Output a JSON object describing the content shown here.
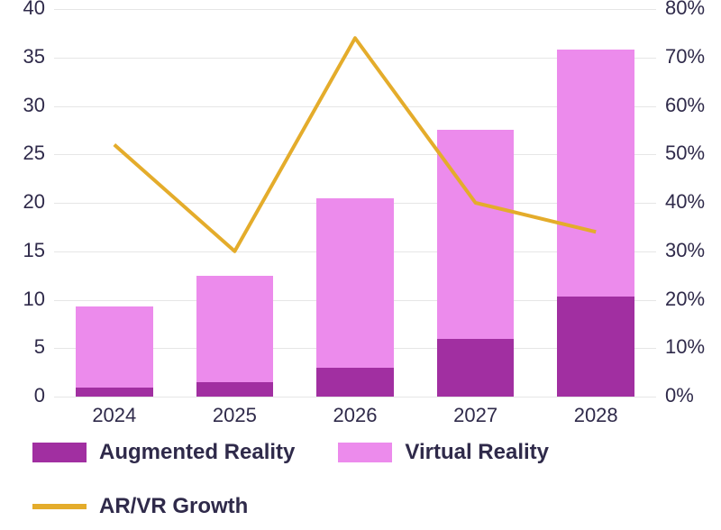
{
  "chart": {
    "type": "stacked-bar+line",
    "background_color": "#ffffff",
    "grid_color": "#e6e6e6",
    "axis_text_color": "#2f2a4a",
    "axis_font_size": 22,
    "legend_font_size": 24,
    "legend_font_weight": 600,
    "bar_width_ratio": 0.64,
    "categories": [
      "2024",
      "2025",
      "2026",
      "2027",
      "2028"
    ],
    "left_axis": {
      "min": 0,
      "max": 40,
      "tick_step": 5,
      "ticks": [
        0,
        5,
        10,
        15,
        20,
        25,
        30,
        35,
        40
      ]
    },
    "right_axis": {
      "min": 0,
      "max": 80,
      "tick_step": 10,
      "ticks": [
        0,
        10,
        20,
        30,
        40,
        50,
        60,
        70,
        80
      ],
      "suffix": "%"
    },
    "series": {
      "augmented_reality": {
        "label": "Augmented Reality",
        "type": "bar",
        "stack": "arvr",
        "color": "#a12fa1",
        "values": [
          0.9,
          1.5,
          3.0,
          6.0,
          10.3
        ]
      },
      "virtual_reality": {
        "label": "Virtual Reality",
        "type": "bar",
        "stack": "arvr",
        "color": "#ec8bec",
        "values": [
          8.4,
          11.0,
          17.5,
          21.5,
          25.5
        ]
      },
      "arvr_growth": {
        "label": "AR/VR Growth",
        "type": "line",
        "color": "#e4ac2b",
        "line_width": 4,
        "axis": "right",
        "values": [
          52,
          30,
          74,
          40,
          34
        ]
      }
    },
    "legend_order": [
      "augmented_reality",
      "virtual_reality",
      "arvr_growth"
    ]
  }
}
